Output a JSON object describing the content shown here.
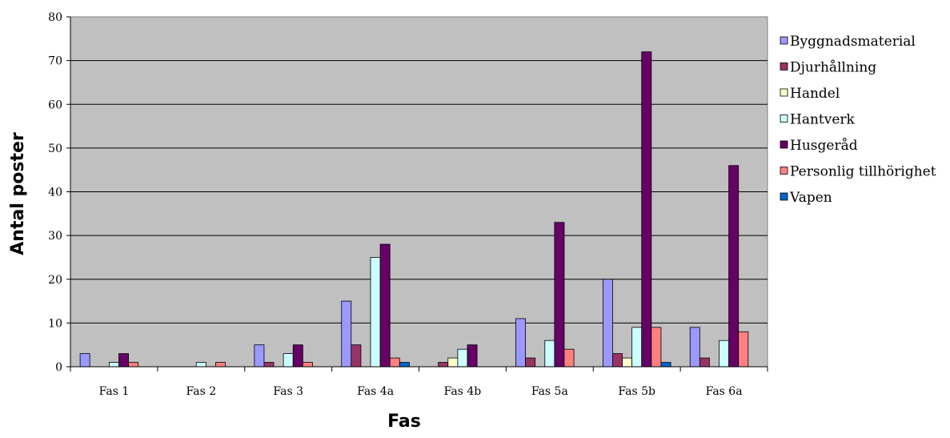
{
  "chart_data": {
    "type": "bar",
    "title": "",
    "xlabel": "Fas",
    "ylabel": "Antal poster",
    "ylim": [
      0,
      80
    ],
    "yticks": [
      0,
      10,
      20,
      30,
      40,
      50,
      60,
      70,
      80
    ],
    "grid": true,
    "legend_position": "right",
    "plot_background": "#C0C0C0",
    "categories": [
      "Fas 1",
      "Fas 2",
      "Fas 3",
      "Fas 4a",
      "Fas 4b",
      "Fas 5a",
      "Fas 5b",
      "Fas 6a"
    ],
    "series": [
      {
        "name": "Byggnadsmaterial",
        "color": "#9999FF",
        "values": [
          3,
          0,
          5,
          15,
          0,
          11,
          20,
          9
        ]
      },
      {
        "name": "Djurhållning",
        "color": "#993366",
        "values": [
          0,
          0,
          1,
          5,
          1,
          2,
          3,
          2
        ]
      },
      {
        "name": "Handel",
        "color": "#FFFFCC",
        "values": [
          0,
          0,
          0,
          0,
          2,
          0,
          2,
          0
        ]
      },
      {
        "name": "Hantverk",
        "color": "#CCFFFF",
        "values": [
          1,
          1,
          3,
          25,
          4,
          6,
          9,
          6
        ]
      },
      {
        "name": "Husgeråd",
        "color": "#660066",
        "values": [
          3,
          0,
          5,
          28,
          5,
          33,
          72,
          46
        ]
      },
      {
        "name": "Personlig tillhörighet",
        "color": "#FF8080",
        "values": [
          1,
          1,
          1,
          2,
          0,
          4,
          9,
          8
        ]
      },
      {
        "name": "Vapen",
        "color": "#0066CC",
        "values": [
          0,
          0,
          0,
          1,
          0,
          0,
          1,
          0
        ]
      }
    ]
  }
}
